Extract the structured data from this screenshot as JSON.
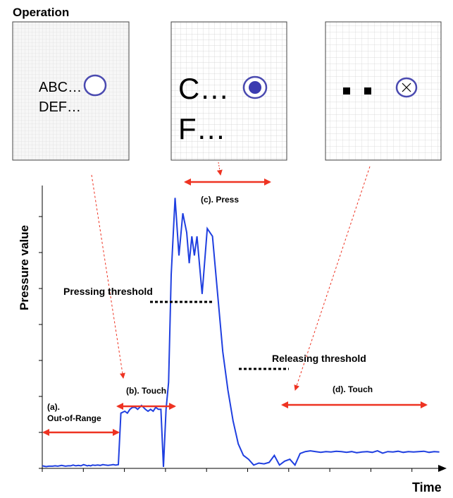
{
  "header": {
    "title": "Operation"
  },
  "panels": {
    "panel1": {
      "line1": "ABC…",
      "line2": "DEF…"
    },
    "panel2": {
      "line1": "C…",
      "line2": "F…"
    }
  },
  "chart": {
    "ylabel": "Pressure value",
    "xlabel": "Time",
    "labels": {
      "press": "(c). Press",
      "pressing_threshold": "Pressing threshold",
      "releasing_threshold": "Releasing threshold",
      "touch_b": "(b). Touch",
      "touch_d": "(d). Touch",
      "out_of_range_1": "(a).",
      "out_of_range_2": "Out-of-Range"
    }
  },
  "colors": {
    "signal": "#1f3fe0",
    "arrow": "#ee3322",
    "panel_border": "#444444",
    "cursor": "#4a4ab0"
  },
  "chart_data": {
    "type": "line",
    "xlabel": "Time",
    "ylabel": "Pressure value",
    "grid": false,
    "series": [
      {
        "x": [
          0,
          0.3,
          0.5,
          0.8,
          1.0,
          1.2,
          1.5,
          1.8,
          2.0,
          2.2,
          2.4,
          2.6,
          2.8,
          3.0,
          3.2,
          3.4,
          3.5,
          3.6,
          3.75,
          3.9,
          4.1,
          4.3,
          4.5,
          4.7,
          4.9,
          5.1,
          5.3,
          5.5,
          5.7,
          5.9,
          6.1,
          6.4,
          6.6,
          6.8,
          7.0,
          7.2,
          7.4,
          7.7,
          8.0,
          8.2,
          8.4,
          8.6,
          8.8,
          9.0,
          9.2,
          9.4,
          9.6,
          9.8,
          10.0,
          10.3,
          10.6,
          10.9,
          11.2,
          11.4,
          11.6,
          11.8,
          12.0,
          12.4,
          12.8,
          13.2,
          13.6,
          14.0,
          14.4,
          14.8,
          15.2,
          15.6,
          16.0,
          16.4,
          16.8,
          17.2,
          17.6,
          18.0,
          18.4,
          18.8,
          19.2,
          19.6,
          20.0,
          20.4,
          20.8,
          21.2,
          21.6,
          22.0,
          22.4,
          22.8,
          23.2,
          23.6,
          24.0,
          24.4,
          24.8,
          25.2,
          25.6,
          26.0,
          26.4,
          26.8,
          27.2,
          27.6,
          28.0,
          28.4,
          28.8,
          29.2,
          29.6,
          30.0,
          30.4,
          30.8
        ],
        "y": [
          0.03,
          0.01,
          0.02,
          0.02,
          0.03,
          0.02,
          0.04,
          0.02,
          0.03,
          0.03,
          0.05,
          0.03,
          0.04,
          0.03,
          0.06,
          0.04,
          0.03,
          0.04,
          0.03,
          0.05,
          0.04,
          0.05,
          0.04,
          0.06,
          0.05,
          0.04,
          0.05,
          0.06,
          0.05,
          0.06,
          1.4,
          1.45,
          1.4,
          1.5,
          1.55,
          1.55,
          1.5,
          1.6,
          1.5,
          1.45,
          1.5,
          1.45,
          1.55,
          1.5,
          1.5,
          0.0,
          1.5,
          2.2,
          5.0,
          7.0,
          5.5,
          6.6,
          6.1,
          5.3,
          6.0,
          5.5,
          6.0,
          4.5,
          6.2,
          6.0,
          4.5,
          3.0,
          2.0,
          1.2,
          0.6,
          0.3,
          0.2,
          0.05,
          0.1,
          0.08,
          0.12,
          0.3,
          0.05,
          0.15,
          0.2,
          0.05,
          0.35,
          0.4,
          0.42,
          0.4,
          0.38,
          0.4,
          0.39,
          0.41,
          0.4,
          0.38,
          0.4,
          0.37,
          0.39,
          0.4,
          0.38,
          0.42,
          0.36,
          0.4,
          0.39,
          0.41,
          0.38,
          0.4,
          0.39,
          0.4,
          0.41,
          0.38,
          0.4,
          0.39
        ]
      }
    ]
  }
}
